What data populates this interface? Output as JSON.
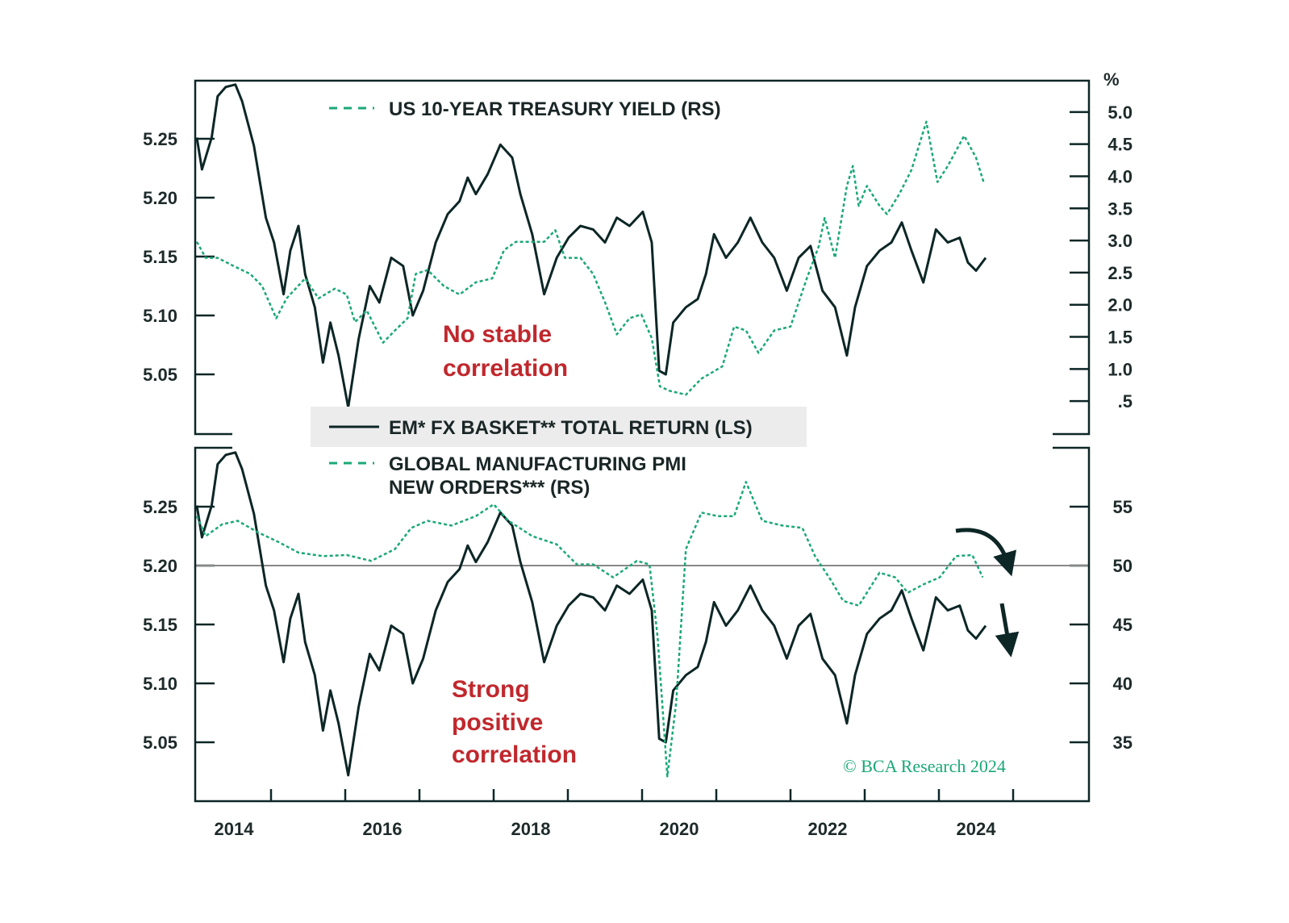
{
  "colors": {
    "em_fx": "#0d2626",
    "green": "#1aa876",
    "annotation": "#c0282d",
    "legend_box": "#ececec",
    "reference_line": "#888888"
  },
  "legend": {
    "treasury": "US 10-YEAR TREASURY YIELD (RS)",
    "em_fx": "EM* FX BASKET** TOTAL RETURN (LS)",
    "pmi_line1": "GLOBAL MANUFACTURING PMI",
    "pmi_line2": "NEW ORDERS*** (RS)"
  },
  "annotations": {
    "top_line1": "No stable",
    "top_line2": "correlation",
    "bottom_line1": "Strong",
    "bottom_line2": "positive",
    "bottom_line3": "correlation"
  },
  "copyright": "© BCA Research 2024",
  "right_unit_top": "%",
  "chart_data": [
    {
      "type": "line",
      "panel": "top",
      "xlim": [
        2014,
        2026
      ],
      "x_tick_labels": [
        "2014",
        "2016",
        "2018",
        "2020",
        "2022",
        "2024"
      ],
      "left_axis": {
        "ylim": [
          5.0,
          5.3
        ],
        "tick_labels": [
          "5.25",
          "5.20",
          "5.15",
          "5.10",
          "5.05"
        ],
        "ticks": [
          5.25,
          5.2,
          5.15,
          5.1,
          5.05
        ]
      },
      "right_axis": {
        "ylim": [
          0,
          5.5
        ],
        "unit": "%",
        "tick_labels": [
          "5.0",
          "4.5",
          "4.0",
          "3.5",
          "3.0",
          "2.5",
          "2.0",
          "1.5",
          "1.0",
          ".5"
        ],
        "ticks": [
          5,
          4.5,
          4,
          3.5,
          3,
          2.5,
          2,
          1.5,
          1,
          0.5
        ]
      },
      "series": [
        {
          "name": "EM* FX BASKET** TOTAL RETURN (LS)",
          "axis": "left",
          "style": "solid",
          "points": [
            [
              2014.0,
              5.251
            ],
            [
              2014.07,
              5.224
            ],
            [
              2014.2,
              5.251
            ],
            [
              2014.28,
              5.286
            ],
            [
              2014.39,
              5.294
            ],
            [
              2014.52,
              5.296
            ],
            [
              2014.61,
              5.282
            ],
            [
              2014.77,
              5.244
            ],
            [
              2014.93,
              5.183
            ],
            [
              2015.04,
              5.162
            ],
            [
              2015.17,
              5.118
            ],
            [
              2015.26,
              5.155
            ],
            [
              2015.37,
              5.176
            ],
            [
              2015.46,
              5.135
            ],
            [
              2015.59,
              5.107
            ],
            [
              2015.7,
              5.06
            ],
            [
              2015.8,
              5.094
            ],
            [
              2015.91,
              5.066
            ],
            [
              2016.04,
              5.022
            ],
            [
              2016.18,
              5.08
            ],
            [
              2016.33,
              5.125
            ],
            [
              2016.46,
              5.111
            ],
            [
              2016.62,
              5.149
            ],
            [
              2016.78,
              5.142
            ],
            [
              2016.91,
              5.1
            ],
            [
              2017.05,
              5.121
            ],
            [
              2017.22,
              5.162
            ],
            [
              2017.38,
              5.186
            ],
            [
              2017.54,
              5.197
            ],
            [
              2017.65,
              5.217
            ],
            [
              2017.76,
              5.203
            ],
            [
              2017.92,
              5.22
            ],
            [
              2018.09,
              5.245
            ],
            [
              2018.25,
              5.234
            ],
            [
              2018.36,
              5.203
            ],
            [
              2018.52,
              5.169
            ],
            [
              2018.68,
              5.118
            ],
            [
              2018.85,
              5.149
            ],
            [
              2019.01,
              5.166
            ],
            [
              2019.17,
              5.176
            ],
            [
              2019.34,
              5.173
            ],
            [
              2019.5,
              5.162
            ],
            [
              2019.66,
              5.183
            ],
            [
              2019.83,
              5.176
            ],
            [
              2020.01,
              5.188
            ],
            [
              2020.13,
              5.162
            ],
            [
              2020.23,
              5.053
            ],
            [
              2020.32,
              5.05
            ],
            [
              2020.42,
              5.094
            ],
            [
              2020.59,
              5.107
            ],
            [
              2020.75,
              5.114
            ],
            [
              2020.86,
              5.135
            ],
            [
              2020.97,
              5.169
            ],
            [
              2021.13,
              5.149
            ],
            [
              2021.29,
              5.162
            ],
            [
              2021.46,
              5.183
            ],
            [
              2021.62,
              5.162
            ],
            [
              2021.78,
              5.149
            ],
            [
              2021.95,
              5.121
            ],
            [
              2022.11,
              5.149
            ],
            [
              2022.27,
              5.159
            ],
            [
              2022.43,
              5.121
            ],
            [
              2022.6,
              5.107
            ],
            [
              2022.76,
              5.066
            ],
            [
              2022.87,
              5.107
            ],
            [
              2023.03,
              5.142
            ],
            [
              2023.2,
              5.155
            ],
            [
              2023.36,
              5.162
            ],
            [
              2023.5,
              5.179
            ],
            [
              2023.63,
              5.155
            ],
            [
              2023.79,
              5.128
            ],
            [
              2023.96,
              5.173
            ],
            [
              2024.12,
              5.162
            ],
            [
              2024.28,
              5.166
            ],
            [
              2024.39,
              5.145
            ],
            [
              2024.5,
              5.138
            ],
            [
              2024.63,
              5.149
            ]
          ]
        },
        {
          "name": "US 10-YEAR TREASURY YIELD (RS)",
          "axis": "right",
          "style": "dashed",
          "points": [
            [
              2014.0,
              2.98
            ],
            [
              2014.12,
              2.73
            ],
            [
              2014.28,
              2.73
            ],
            [
              2014.5,
              2.6
            ],
            [
              2014.72,
              2.48
            ],
            [
              2014.88,
              2.29
            ],
            [
              2015.07,
              1.79
            ],
            [
              2015.21,
              2.1
            ],
            [
              2015.46,
              2.41
            ],
            [
              2015.64,
              2.1
            ],
            [
              2015.86,
              2.25
            ],
            [
              2016.02,
              2.16
            ],
            [
              2016.13,
              1.73
            ],
            [
              2016.29,
              1.91
            ],
            [
              2016.51,
              1.41
            ],
            [
              2016.67,
              1.6
            ],
            [
              2016.84,
              1.79
            ],
            [
              2016.95,
              2.48
            ],
            [
              2017.11,
              2.54
            ],
            [
              2017.33,
              2.29
            ],
            [
              2017.54,
              2.16
            ],
            [
              2017.76,
              2.35
            ],
            [
              2017.98,
              2.41
            ],
            [
              2018.14,
              2.85
            ],
            [
              2018.3,
              2.98
            ],
            [
              2018.52,
              2.98
            ],
            [
              2018.68,
              2.98
            ],
            [
              2018.83,
              3.16
            ],
            [
              2018.96,
              2.73
            ],
            [
              2019.17,
              2.73
            ],
            [
              2019.34,
              2.48
            ],
            [
              2019.5,
              2.04
            ],
            [
              2019.66,
              1.54
            ],
            [
              2019.83,
              1.79
            ],
            [
              2019.99,
              1.85
            ],
            [
              2020.13,
              1.48
            ],
            [
              2020.24,
              0.73
            ],
            [
              2020.37,
              0.66
            ],
            [
              2020.59,
              0.6
            ],
            [
              2020.8,
              0.85
            ],
            [
              2021.08,
              1.04
            ],
            [
              2021.24,
              1.66
            ],
            [
              2021.4,
              1.6
            ],
            [
              2021.57,
              1.25
            ],
            [
              2021.78,
              1.6
            ],
            [
              2022.0,
              1.66
            ],
            [
              2022.22,
              2.41
            ],
            [
              2022.38,
              2.91
            ],
            [
              2022.46,
              3.35
            ],
            [
              2022.6,
              2.73
            ],
            [
              2022.76,
              3.85
            ],
            [
              2022.84,
              4.16
            ],
            [
              2022.92,
              3.54
            ],
            [
              2023.03,
              3.85
            ],
            [
              2023.2,
              3.54
            ],
            [
              2023.3,
              3.41
            ],
            [
              2023.47,
              3.73
            ],
            [
              2023.63,
              4.1
            ],
            [
              2023.83,
              4.85
            ],
            [
              2023.98,
              3.91
            ],
            [
              2024.12,
              4.16
            ],
            [
              2024.34,
              4.63
            ],
            [
              2024.5,
              4.29
            ],
            [
              2024.61,
              3.88
            ]
          ]
        }
      ],
      "annotation": "No stable correlation"
    },
    {
      "type": "line",
      "panel": "bottom",
      "xlim": [
        2014,
        2026
      ],
      "x_tick_labels": [
        "2014",
        "2016",
        "2018",
        "2020",
        "2022",
        "2024"
      ],
      "left_axis": {
        "ylim": [
          5.0,
          5.3
        ],
        "tick_labels": [
          "5.25",
          "5.20",
          "5.15",
          "5.10",
          "5.05"
        ],
        "ticks": [
          5.25,
          5.2,
          5.15,
          5.1,
          5.05
        ]
      },
      "right_axis": {
        "ylim": [
          30,
          60
        ],
        "tick_labels": [
          "55",
          "50",
          "45",
          "40",
          "35"
        ],
        "ticks": [
          55,
          50,
          45,
          40,
          35
        ]
      },
      "reference_line": 50,
      "series": [
        {
          "name": "EM* FX BASKET** TOTAL RETURN (LS)",
          "axis": "left",
          "style": "solid",
          "same_as": "top"
        },
        {
          "name": "GLOBAL MANUFACTURING PMI NEW ORDERS*** (RS)",
          "axis": "right",
          "style": "dashed",
          "points": [
            [
              2014.0,
              54.2
            ],
            [
              2014.12,
              52.5
            ],
            [
              2014.34,
              53.5
            ],
            [
              2014.55,
              53.8
            ],
            [
              2014.83,
              52.8
            ],
            [
              2015.1,
              52.0
            ],
            [
              2015.37,
              51.1
            ],
            [
              2015.7,
              50.8
            ],
            [
              2016.02,
              50.9
            ],
            [
              2016.35,
              50.4
            ],
            [
              2016.67,
              51.4
            ],
            [
              2016.89,
              53.2
            ],
            [
              2017.11,
              53.8
            ],
            [
              2017.43,
              53.4
            ],
            [
              2017.76,
              54.2
            ],
            [
              2018.0,
              55.2
            ],
            [
              2018.2,
              53.8
            ],
            [
              2018.52,
              52.5
            ],
            [
              2018.85,
              51.8
            ],
            [
              2019.12,
              50.1
            ],
            [
              2019.34,
              50.1
            ],
            [
              2019.61,
              49.0
            ],
            [
              2019.93,
              50.4
            ],
            [
              2020.1,
              50.1
            ],
            [
              2020.21,
              43.9
            ],
            [
              2020.34,
              32.1
            ],
            [
              2020.46,
              38.4
            ],
            [
              2020.59,
              51.4
            ],
            [
              2020.8,
              54.5
            ],
            [
              2021.02,
              54.2
            ],
            [
              2021.24,
              54.2
            ],
            [
              2021.4,
              57.1
            ],
            [
              2021.62,
              53.8
            ],
            [
              2021.89,
              53.4
            ],
            [
              2022.16,
              53.2
            ],
            [
              2022.33,
              50.8
            ],
            [
              2022.54,
              48.8
            ],
            [
              2022.71,
              47.0
            ],
            [
              2022.92,
              46.6
            ],
            [
              2023.2,
              49.4
            ],
            [
              2023.41,
              49.0
            ],
            [
              2023.58,
              47.7
            ],
            [
              2023.79,
              48.4
            ],
            [
              2024.01,
              49.0
            ],
            [
              2024.23,
              50.8
            ],
            [
              2024.45,
              50.9
            ],
            [
              2024.59,
              49.0
            ]
          ]
        }
      ],
      "annotation": "Strong positive correlation",
      "arrows": [
        "curved-down-arrow",
        "down-arrow"
      ]
    }
  ]
}
